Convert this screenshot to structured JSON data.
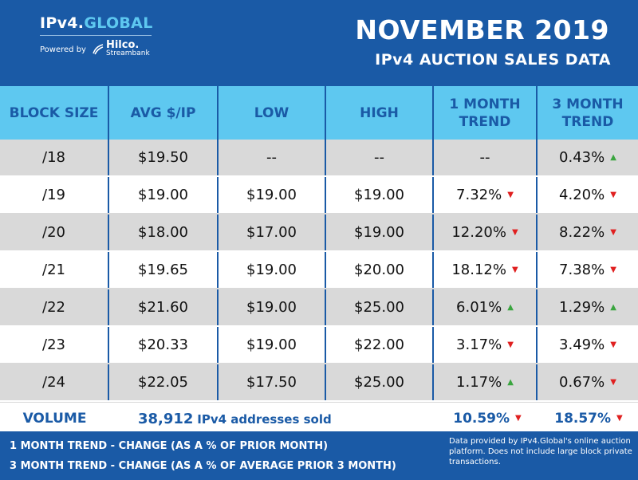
{
  "brand": {
    "name_part1": "IPv4.",
    "name_part2": "GLOBAL",
    "powered_by": "Powered by",
    "partner_name": "Hilco.",
    "partner_sub": "Streambank"
  },
  "title": {
    "line1": "NOVEMBER 2019",
    "line2": "IPv4 AUCTION SALES DATA"
  },
  "table": {
    "headers": [
      "BLOCK SIZE",
      "AVG $/IP",
      "LOW",
      "HIGH",
      "1 MONTH TREND",
      "3 MONTH TREND"
    ],
    "rows": [
      {
        "block": "/18",
        "avg": "$19.50",
        "low": "--",
        "high": "--",
        "t1": "--",
        "t1_dir": "",
        "t3": "0.43%",
        "t3_dir": "up"
      },
      {
        "block": "/19",
        "avg": "$19.00",
        "low": "$19.00",
        "high": "$19.00",
        "t1": "7.32%",
        "t1_dir": "down",
        "t3": "4.20%",
        "t3_dir": "down"
      },
      {
        "block": "/20",
        "avg": "$18.00",
        "low": "$17.00",
        "high": "$19.00",
        "t1": "12.20%",
        "t1_dir": "down",
        "t3": "8.22%",
        "t3_dir": "down"
      },
      {
        "block": "/21",
        "avg": "$19.65",
        "low": "$19.00",
        "high": "$20.00",
        "t1": "18.12%",
        "t1_dir": "down",
        "t3": "7.38%",
        "t3_dir": "down"
      },
      {
        "block": "/22",
        "avg": "$21.60",
        "low": "$19.00",
        "high": "$25.00",
        "t1": "6.01%",
        "t1_dir": "up",
        "t3": "1.29%",
        "t3_dir": "up"
      },
      {
        "block": "/23",
        "avg": "$20.33",
        "low": "$19.00",
        "high": "$22.00",
        "t1": "3.17%",
        "t1_dir": "down",
        "t3": "3.49%",
        "t3_dir": "down"
      },
      {
        "block": "/24",
        "avg": "$22.05",
        "low": "$17.50",
        "high": "$25.00",
        "t1": "1.17%",
        "t1_dir": "up",
        "t3": "0.67%",
        "t3_dir": "down"
      }
    ]
  },
  "volume": {
    "label": "VOLUME",
    "count": "38,912",
    "desc": "IPv4 addresses sold",
    "t1": "10.59%",
    "t1_dir": "down",
    "t3": "18.57%",
    "t3_dir": "down"
  },
  "footer": {
    "note1": "1 MONTH TREND - CHANGE (AS A % OF PRIOR MONTH)",
    "note2": "3 MONTH TREND - CHANGE (AS A % OF AVERAGE PRIOR 3 MONTH)",
    "disclaimer": "Data provided by IPv4.Global's online auction platform. Does not include large block private transactions."
  },
  "colors": {
    "brand_blue": "#1a5aa6",
    "header_cyan": "#5ec8f0",
    "row_gray": "#d9d9d9",
    "up_green": "#3aa53f",
    "down_red": "#e02020"
  },
  "icons": {
    "up": "triangle-up-icon",
    "down": "triangle-down-icon"
  }
}
